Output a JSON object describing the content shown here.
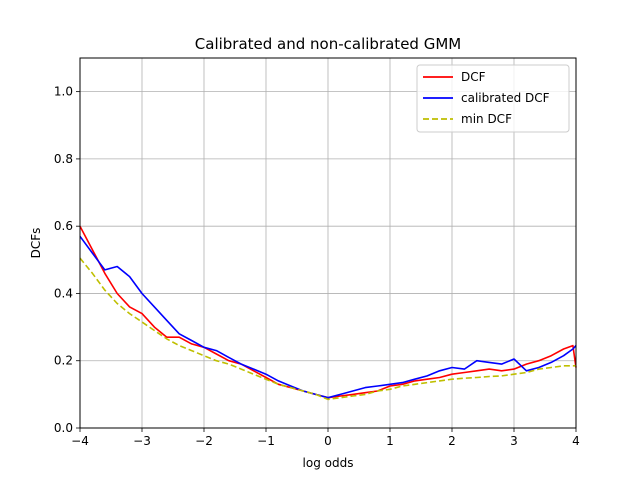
{
  "chart_data": {
    "type": "line",
    "title": "Calibrated and non-calibrated GMM",
    "xlabel": "log odds",
    "ylabel": "DCFs",
    "xlim": [
      -4,
      4
    ],
    "ylim": [
      0,
      1.1
    ],
    "xticks": [
      -4,
      -3,
      -2,
      -1,
      0,
      1,
      2,
      3,
      4
    ],
    "xtick_labels": [
      "−4",
      "−3",
      "−2",
      "−1",
      "0",
      "1",
      "2",
      "3",
      "4"
    ],
    "yticks": [
      0.0,
      0.2,
      0.4,
      0.6,
      0.8,
      1.0
    ],
    "ytick_labels": [
      "0.0",
      "0.2",
      "0.4",
      "0.6",
      "0.8",
      "1.0"
    ],
    "grid": true,
    "legend_position": "top-right",
    "x": [
      -4.0,
      -3.8,
      -3.6,
      -3.4,
      -3.2,
      -3.0,
      -2.8,
      -2.6,
      -2.4,
      -2.2,
      -2.0,
      -1.8,
      -1.6,
      -1.4,
      -1.2,
      -1.0,
      -0.8,
      -0.6,
      -0.4,
      -0.2,
      0.0,
      0.2,
      0.4,
      0.6,
      0.8,
      1.0,
      1.2,
      1.4,
      1.6,
      1.8,
      2.0,
      2.2,
      2.4,
      2.6,
      2.8,
      3.0,
      3.2,
      3.4,
      3.6,
      3.8,
      3.95,
      4.0
    ],
    "series": [
      {
        "name": "DCF",
        "color": "#ff0000",
        "style": "solid",
        "values": [
          0.6,
          0.53,
          0.46,
          0.4,
          0.36,
          0.34,
          0.3,
          0.27,
          0.27,
          0.25,
          0.24,
          0.22,
          0.2,
          0.19,
          0.17,
          0.15,
          0.13,
          0.12,
          0.11,
          0.1,
          0.09,
          0.095,
          0.1,
          0.105,
          0.11,
          0.125,
          0.13,
          0.14,
          0.145,
          0.15,
          0.16,
          0.165,
          0.17,
          0.175,
          0.17,
          0.175,
          0.19,
          0.2,
          0.215,
          0.235,
          0.245,
          0.18
        ]
      },
      {
        "name": "calibrated DCF",
        "color": "#0000ff",
        "style": "solid",
        "values": [
          0.57,
          0.52,
          0.47,
          0.48,
          0.45,
          0.4,
          0.36,
          0.32,
          0.28,
          0.26,
          0.24,
          0.23,
          0.21,
          0.19,
          0.175,
          0.16,
          0.14,
          0.125,
          0.11,
          0.1,
          0.09,
          0.1,
          0.11,
          0.12,
          0.125,
          0.13,
          0.135,
          0.145,
          0.155,
          0.17,
          0.18,
          0.175,
          0.2,
          0.195,
          0.19,
          0.205,
          0.17,
          0.18,
          0.195,
          0.215,
          0.235,
          0.245
        ]
      },
      {
        "name": "min DCF",
        "color": "#bfbf00",
        "style": "dashed",
        "values": [
          0.505,
          0.46,
          0.41,
          0.37,
          0.34,
          0.315,
          0.29,
          0.265,
          0.245,
          0.23,
          0.215,
          0.2,
          0.19,
          0.175,
          0.16,
          0.145,
          0.13,
          0.12,
          0.11,
          0.1,
          0.085,
          0.09,
          0.095,
          0.1,
          0.11,
          0.115,
          0.125,
          0.13,
          0.135,
          0.14,
          0.145,
          0.148,
          0.15,
          0.153,
          0.155,
          0.16,
          0.165,
          0.175,
          0.18,
          0.185,
          0.185,
          0.185
        ]
      }
    ]
  }
}
